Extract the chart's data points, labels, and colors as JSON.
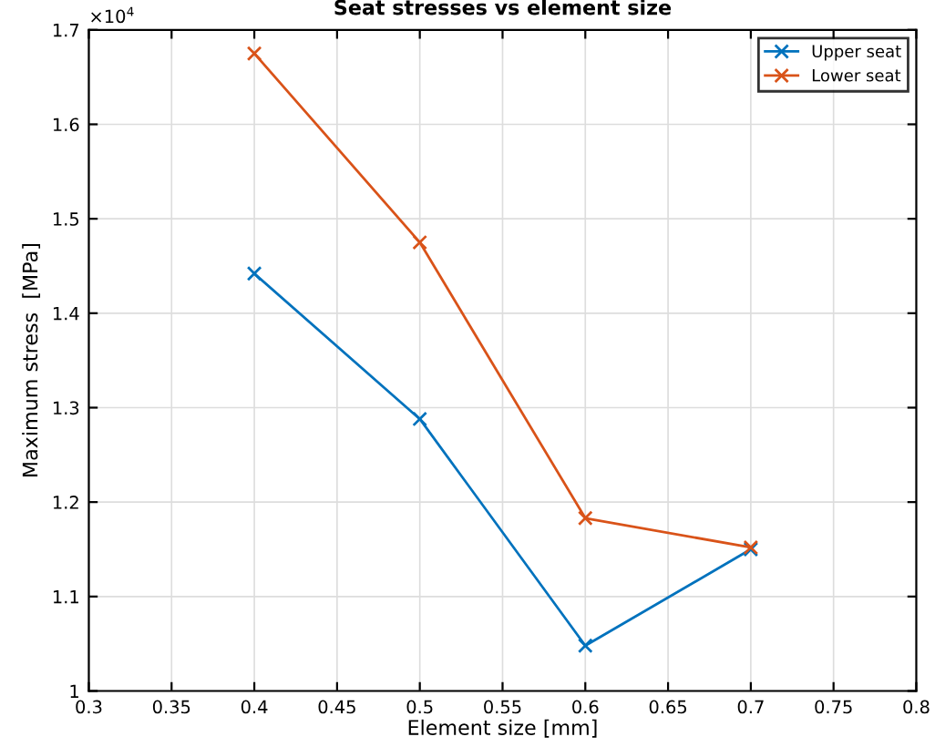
{
  "chart_data": {
    "type": "line",
    "title": "Seat stresses vs element size",
    "xlabel": "Element size [mm]",
    "ylabel": "Maximum stress  [MPa]",
    "x": [
      0.4,
      0.5,
      0.6,
      0.7
    ],
    "series": [
      {
        "name": "Upper seat",
        "color": "#0072bd",
        "values": [
          1.442,
          1.288,
          1.048,
          1.15
        ]
      },
      {
        "name": "Lower seat",
        "color": "#d95319",
        "values": [
          1.675,
          1.475,
          1.183,
          1.152
        ]
      }
    ],
    "xlim": [
      0.3,
      0.8
    ],
    "xticks": [
      0.3,
      0.35,
      0.4,
      0.45,
      0.5,
      0.55,
      0.6,
      0.65,
      0.7,
      0.75,
      0.8
    ],
    "ylim": [
      1,
      1.7
    ],
    "yticks": [
      1,
      1.1,
      1.2,
      1.3,
      1.4,
      1.5,
      1.6,
      1.7
    ],
    "annotations": [
      "×10$^{4}$"
    ],
    "grid": true,
    "legend": "top right",
    "marker": "cross",
    "line_style": "solid"
  }
}
